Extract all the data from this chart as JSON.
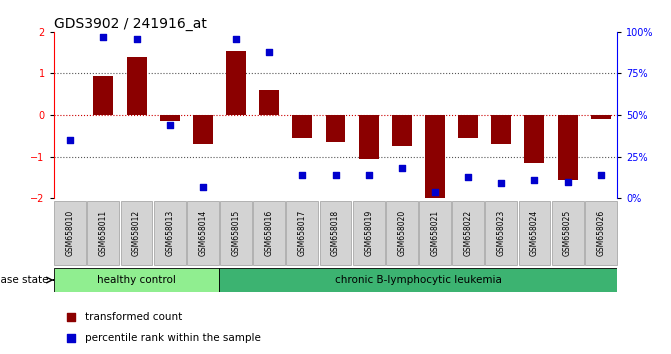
{
  "title": "GDS3902 / 241916_at",
  "samples": [
    "GSM658010",
    "GSM658011",
    "GSM658012",
    "GSM658013",
    "GSM658014",
    "GSM658015",
    "GSM658016",
    "GSM658017",
    "GSM658018",
    "GSM658019",
    "GSM658020",
    "GSM658021",
    "GSM658022",
    "GSM658023",
    "GSM658024",
    "GSM658025",
    "GSM658026"
  ],
  "bar_values": [
    0.0,
    0.95,
    1.4,
    -0.15,
    -0.7,
    1.55,
    0.6,
    -0.55,
    -0.65,
    -1.05,
    -0.75,
    -2.05,
    -0.55,
    -0.7,
    -1.15,
    -1.55,
    -0.1
  ],
  "percentile_values": [
    35,
    97,
    96,
    44,
    7,
    96,
    88,
    14,
    14,
    14,
    18,
    4,
    13,
    9,
    11,
    10,
    14
  ],
  "bar_color": "#8B0000",
  "dot_color": "#0000CD",
  "ylim": [
    -2.0,
    2.0
  ],
  "y2lim": [
    0,
    100
  ],
  "yticks": [
    -2,
    -1,
    0,
    1,
    2
  ],
  "y2ticks": [
    0,
    25,
    50,
    75,
    100
  ],
  "y2ticklabels": [
    "0%",
    "25%",
    "50%",
    "75%",
    "100%"
  ],
  "hc_count": 5,
  "hc_label": "healthy control",
  "hc_color": "#90EE90",
  "cll_label": "chronic B-lymphocytic leukemia",
  "cll_color": "#3CB371",
  "disease_state_label": "disease state",
  "legend_labels": [
    "transformed count",
    "percentile rank within the sample"
  ],
  "legend_colors": [
    "#8B0000",
    "#0000CD"
  ],
  "bg_color": "#ffffff",
  "plot_bg": "#ffffff",
  "zero_line_color": "#CC0000",
  "dotted_line_color": "#555555",
  "title_fontsize": 10,
  "tick_box_color": "#d3d3d3",
  "tick_box_edge": "#888888"
}
